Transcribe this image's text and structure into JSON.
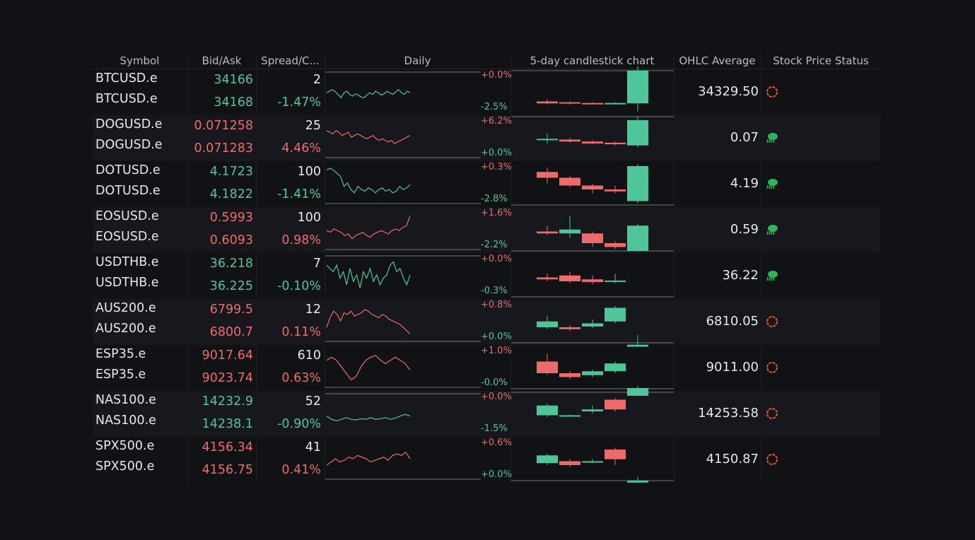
{
  "headers": [
    "Symbol",
    "Bid/Ask",
    "Spread/C...",
    "Daily",
    "5-day candlestick chart",
    "OHLC Average",
    "Stock Price Status"
  ],
  "colors": {
    "up": "#4fc59a",
    "down": "#ef6b6b",
    "status_circle": "#e8572a",
    "status_bull": "#2fb45a"
  },
  "rows": [
    {
      "symbol1": "BTCUSD.e",
      "symbol2": "BTCUSD.e",
      "bid": "34166",
      "ask": "34168",
      "dir": "up",
      "spread": "2",
      "change": "-1.47%",
      "pct_top": "+0.0%",
      "pct_bottom": "-2.5%",
      "ohlc": "34329.50",
      "status": "circle-icon",
      "spark": [
        0.55,
        0.5,
        0.45,
        0.52,
        0.6,
        0.7,
        0.55,
        0.5,
        0.6,
        0.65,
        0.58,
        0.62,
        0.68,
        0.7,
        0.62,
        0.55,
        0.6,
        0.5,
        0.55,
        0.62,
        0.58,
        0.5,
        0.55,
        0.6,
        0.52,
        0.45,
        0.55,
        0.6,
        0.5,
        0.55
      ],
      "candles": [
        {
          "o": 0.3,
          "c": 0.25,
          "h": 0.35,
          "l": 0.22
        },
        {
          "o": 0.28,
          "c": 0.25,
          "h": 0.3,
          "l": 0.22
        },
        {
          "o": 0.26,
          "c": 0.24,
          "h": 0.28,
          "l": 0.22
        },
        {
          "o": 0.25,
          "c": 0.26,
          "h": 0.28,
          "l": 0.23
        },
        {
          "o": 0.25,
          "c": 1.1,
          "h": 1.2,
          "l": 0.05
        }
      ]
    },
    {
      "symbol1": "DOGUSD.e",
      "symbol2": "DOGUSD.e",
      "bid": "0.071258",
      "ask": "0.071283",
      "dir": "down",
      "spread": "25",
      "change": "4.46%",
      "pct_top": "+6.2%",
      "pct_bottom": "+0.0%",
      "ohlc": "0.07",
      "status": "bull-icon",
      "spark": [
        0.3,
        0.35,
        0.4,
        0.3,
        0.35,
        0.45,
        0.4,
        0.35,
        0.5,
        0.45,
        0.4,
        0.45,
        0.5,
        0.55,
        0.5,
        0.45,
        0.55,
        0.6,
        0.55,
        0.6,
        0.65,
        0.6,
        0.7,
        0.65,
        0.6,
        0.55,
        0.5,
        0.45
      ],
      "candles": [
        {
          "o": 0.5,
          "c": 0.52,
          "h": 0.65,
          "l": 0.4
        },
        {
          "o": 0.5,
          "c": 0.45,
          "h": 0.55,
          "l": 0.42
        },
        {
          "o": 0.45,
          "c": 0.4,
          "h": 0.48,
          "l": 0.38
        },
        {
          "o": 0.42,
          "c": 0.38,
          "h": 0.45,
          "l": 0.35
        },
        {
          "o": 0.35,
          "c": 1.0,
          "h": 1.1,
          "l": 0.3
        }
      ]
    },
    {
      "symbol1": "DOTUSD.e",
      "symbol2": "DOTUSD.e",
      "bid": "4.1723",
      "ask": "4.1822",
      "dir": "up",
      "spread": "100",
      "change": "-1.41%",
      "pct_top": "+0.3%",
      "pct_bottom": "-2.8%",
      "ohlc": "4.19",
      "status": "bull-icon",
      "spark": [
        0.1,
        0.05,
        0.1,
        0.2,
        0.3,
        0.6,
        0.5,
        0.7,
        0.8,
        0.6,
        0.7,
        0.75,
        0.65,
        0.7,
        0.8,
        0.7,
        0.65,
        0.75,
        0.7,
        0.8,
        0.75,
        0.6,
        0.7,
        0.65,
        0.55
      ],
      "candles": [
        {
          "o": 0.85,
          "c": 0.7,
          "h": 0.95,
          "l": 0.55
        },
        {
          "o": 0.7,
          "c": 0.5,
          "h": 0.75,
          "l": 0.45
        },
        {
          "o": 0.5,
          "c": 0.4,
          "h": 0.55,
          "l": 0.3
        },
        {
          "o": 0.4,
          "c": 0.35,
          "h": 0.5,
          "l": 0.3
        },
        {
          "o": 0.1,
          "c": 1.0,
          "h": 1.05,
          "l": 0.05
        }
      ]
    },
    {
      "symbol1": "EOSUSD.e",
      "symbol2": "EOSUSD.e",
      "bid": "0.5993",
      "ask": "0.6093",
      "dir": "down",
      "spread": "100",
      "change": "0.98%",
      "pct_top": "+1.6%",
      "pct_bottom": "-2.2%",
      "ohlc": "0.59",
      "status": "bull-icon",
      "spark": [
        0.55,
        0.6,
        0.5,
        0.55,
        0.6,
        0.7,
        0.65,
        0.8,
        0.7,
        0.65,
        0.6,
        0.7,
        0.75,
        0.65,
        0.6,
        0.55,
        0.6,
        0.65,
        0.55,
        0.5,
        0.55,
        0.45,
        0.4,
        0.1
      ],
      "candles": [
        {
          "o": 0.5,
          "c": 0.45,
          "h": 0.65,
          "l": 0.4
        },
        {
          "o": 0.45,
          "c": 0.55,
          "h": 0.9,
          "l": 0.35
        },
        {
          "o": 0.45,
          "c": 0.2,
          "h": 0.5,
          "l": 0.1
        },
        {
          "o": 0.2,
          "c": 0.1,
          "h": 0.25,
          "l": 0.05
        },
        {
          "o": 0.0,
          "c": 0.65,
          "h": 0.7,
          "l": 0.0
        }
      ]
    },
    {
      "symbol1": "USDTHB.e",
      "symbol2": "USDTHB.e",
      "bid": "36.218",
      "ask": "36.225",
      "dir": "up",
      "spread": "7",
      "change": "-0.10%",
      "pct_top": "+0.0%",
      "pct_bottom": "-0.3%",
      "ohlc": "36.22",
      "status": "bull-icon",
      "spark": [
        0.2,
        0.3,
        0.4,
        0.2,
        0.6,
        0.4,
        0.8,
        0.3,
        0.7,
        0.5,
        0.9,
        0.4,
        0.6,
        0.3,
        0.7,
        0.5,
        0.8,
        0.6,
        0.5,
        0.2,
        0.1,
        0.4,
        0.3,
        0.6,
        0.8,
        0.5
      ],
      "candles": [
        {
          "o": 0.5,
          "c": 0.45,
          "h": 0.6,
          "l": 0.4
        },
        {
          "o": 0.55,
          "c": 0.4,
          "h": 0.65,
          "l": 0.35
        },
        {
          "o": 0.45,
          "c": 0.38,
          "h": 0.55,
          "l": 0.32
        },
        {
          "o": 0.4,
          "c": 0.42,
          "h": 0.6,
          "l": 0.35
        },
        {
          "o": -0.5,
          "c": -0.7,
          "h": -0.45,
          "l": -0.75
        }
      ]
    },
    {
      "symbol1": "AUS200.e",
      "symbol2": "AUS200.e",
      "bid": "6799.5",
      "ask": "6800.7",
      "dir": "down",
      "spread": "12",
      "change": "0.11%",
      "pct_top": "+0.8%",
      "pct_bottom": "+0.0%",
      "ohlc": "6810.05",
      "status": "circle-icon",
      "spark": [
        0.7,
        0.4,
        0.2,
        0.3,
        0.5,
        0.25,
        0.3,
        0.2,
        0.35,
        0.3,
        0.25,
        0.15,
        0.2,
        0.3,
        0.35,
        0.4,
        0.3,
        0.35,
        0.45,
        0.5,
        0.55,
        0.6,
        0.7,
        0.8,
        0.9
      ],
      "candles": [
        {
          "o": 0.4,
          "c": 0.55,
          "h": 0.7,
          "l": 0.35
        },
        {
          "o": 0.4,
          "c": 0.35,
          "h": 0.45,
          "l": 0.3
        },
        {
          "o": 0.42,
          "c": 0.5,
          "h": 0.6,
          "l": 0.38
        },
        {
          "o": 0.55,
          "c": 0.9,
          "h": 0.95,
          "l": 0.5
        },
        {
          "o": -0.1,
          "c": -0.05,
          "h": 0.2,
          "l": -0.1
        }
      ]
    },
    {
      "symbol1": "ESP35.e",
      "symbol2": "ESP35.e",
      "bid": "9017.64",
      "ask": "9023.74",
      "dir": "down",
      "spread": "610",
      "change": "0.63%",
      "pct_top": "+1.0%",
      "pct_bottom": "-0.0%",
      "ohlc": "9011.00",
      "status": "circle-icon",
      "spark": [
        0.3,
        0.2,
        0.3,
        0.5,
        0.7,
        0.9,
        0.8,
        0.5,
        0.3,
        0.2,
        0.15,
        0.3,
        0.4,
        0.3,
        0.2,
        0.3,
        0.4,
        0.6
      ],
      "candles": [
        {
          "o": 0.7,
          "c": 0.4,
          "h": 0.9,
          "l": 0.35
        },
        {
          "o": 0.4,
          "c": 0.3,
          "h": 0.45,
          "l": 0.25
        },
        {
          "o": 0.35,
          "c": 0.45,
          "h": 0.5,
          "l": 0.3
        },
        {
          "o": 0.45,
          "c": 0.65,
          "h": 0.7,
          "l": 0.4
        },
        {
          "o": -0.1,
          "c": 0.0,
          "h": 0.05,
          "l": -0.1
        }
      ]
    },
    {
      "symbol1": "NAS100.e",
      "symbol2": "NAS100.e",
      "bid": "14232.9",
      "ask": "14238.1",
      "dir": "up",
      "spread": "52",
      "change": "-0.90%",
      "pct_top": "+0.0%",
      "pct_bottom": "-1.5%",
      "ohlc": "14253.58",
      "status": "circle-icon",
      "spark": [
        0.6,
        0.7,
        0.75,
        0.7,
        0.65,
        0.7,
        0.72,
        0.68,
        0.7,
        0.65,
        0.7,
        0.68,
        0.65,
        0.7,
        0.66,
        0.6,
        0.55,
        0.6
      ],
      "candles": [
        {
          "o": 0.5,
          "c": 0.75,
          "h": 0.8,
          "l": 0.45
        },
        {
          "o": 0.5,
          "c": 0.5,
          "h": 0.52,
          "l": 0.48
        },
        {
          "o": 0.6,
          "c": 0.65,
          "h": 0.75,
          "l": 0.55
        },
        {
          "o": 0.9,
          "c": 0.65,
          "h": 0.95,
          "l": 0.6
        },
        {
          "o": 1.0,
          "c": 1.2,
          "h": 1.25,
          "l": 1.0
        }
      ]
    },
    {
      "symbol1": "SPX500.e",
      "symbol2": "SPX500.e",
      "bid": "4156.34",
      "ask": "4156.75",
      "dir": "down",
      "spread": "41",
      "change": "0.41%",
      "pct_top": "+0.6%",
      "pct_bottom": "+0.0%",
      "ohlc": "4150.87",
      "status": "circle-icon",
      "spark": [
        0.7,
        0.6,
        0.5,
        0.6,
        0.55,
        0.45,
        0.5,
        0.4,
        0.45,
        0.5,
        0.6,
        0.55,
        0.5,
        0.45,
        0.55,
        0.4,
        0.35,
        0.4,
        0.3,
        0.5
      ],
      "candles": [
        {
          "o": 0.45,
          "c": 0.65,
          "h": 0.7,
          "l": 0.4
        },
        {
          "o": 0.5,
          "c": 0.4,
          "h": 0.55,
          "l": 0.35
        },
        {
          "o": 0.5,
          "c": 0.5,
          "h": 0.55,
          "l": 0.45
        },
        {
          "o": 0.8,
          "c": 0.55,
          "h": 0.85,
          "l": 0.4
        },
        {
          "o": -0.05,
          "c": 0.0,
          "h": 0.1,
          "l": -0.05
        }
      ]
    }
  ]
}
